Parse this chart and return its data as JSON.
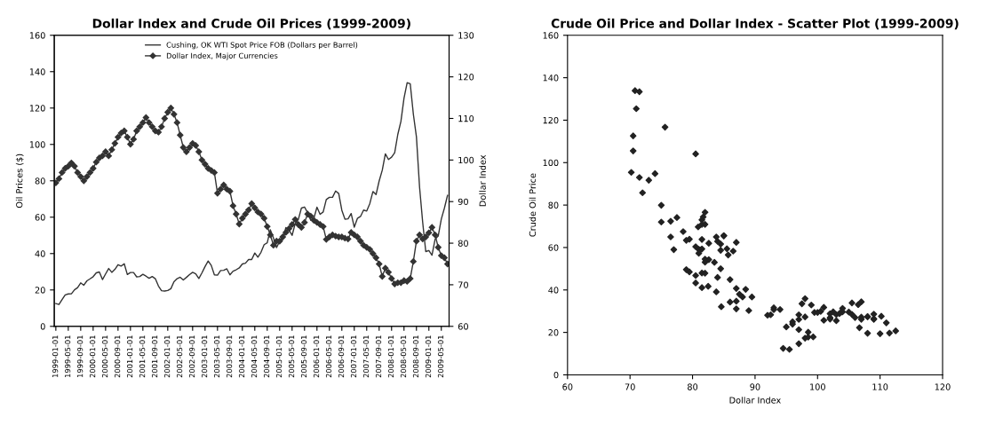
{
  "chart_data": [
    {
      "type": "line",
      "title": "Dollar Index and Crude Oil Prices (1999-2009)",
      "ylabel": "Oil Prices ($)",
      "y2label": "Dollar Index",
      "categories": [
        "1999-01-01",
        null,
        null,
        null,
        "1999-05-01",
        null,
        null,
        null,
        "1999-09-01",
        null,
        null,
        null,
        "2000-01-01",
        null,
        null,
        null,
        "2000-05-01",
        null,
        null,
        null,
        "2000-09-01",
        null,
        null,
        null,
        "2001-01-01",
        null,
        null,
        null,
        "2001-05-01",
        null,
        null,
        null,
        "2001-09-01",
        null,
        null,
        null,
        "2002-01-01",
        null,
        null,
        null,
        "2002-05-01",
        null,
        null,
        null,
        "2002-09-01",
        null,
        null,
        null,
        "2003-01-01",
        null,
        null,
        null,
        "2003-05-01",
        null,
        null,
        null,
        "2003-09-01",
        null,
        null,
        null,
        "2004-01-01",
        null,
        null,
        null,
        "2004-05-01",
        null,
        null,
        null,
        "2004-09-01",
        null,
        null,
        null,
        "2005-01-01",
        null,
        null,
        null,
        "2005-05-01",
        null,
        null,
        null,
        "2005-09-01",
        null,
        null,
        null,
        "2006-01-01",
        null,
        null,
        null,
        "2006-05-01",
        null,
        null,
        null,
        "2006-09-01",
        null,
        null,
        null,
        "2007-01-01",
        null,
        null,
        null,
        "2007-05-01",
        null,
        null,
        null,
        "2007-09-01",
        null,
        null,
        null,
        "2008-01-01",
        null,
        null,
        null,
        "2008-05-01",
        null,
        null,
        null,
        "2008-09-01",
        null,
        null,
        null,
        "2009-01-01",
        null,
        null,
        null,
        "2009-05-01",
        null,
        null
      ],
      "series": [
        {
          "name": "Cushing, OK WTI Spot Price FOB (Dollars per Barrel)",
          "color": "#333333",
          "marker": "none",
          "values": [
            12.5,
            12.0,
            14.7,
            17.3,
            17.8,
            17.9,
            20.1,
            21.3,
            23.9,
            22.6,
            25.0,
            26.1,
            27.3,
            29.4,
            29.9,
            25.7,
            28.8,
            31.8,
            29.7,
            31.3,
            33.9,
            33.1,
            34.4,
            28.5,
            29.6,
            29.6,
            27.2,
            27.4,
            28.6,
            27.6,
            26.4,
            27.4,
            26.2,
            22.2,
            19.6,
            19.4,
            19.7,
            20.7,
            24.5,
            26.2,
            27.0,
            25.5,
            26.9,
            28.4,
            29.7,
            28.9,
            26.3,
            29.4,
            32.9,
            35.9,
            33.5,
            28.3,
            28.1,
            30.7,
            30.8,
            31.6,
            28.3,
            30.3,
            31.1,
            32.1,
            34.3,
            34.7,
            36.7,
            36.7,
            40.3,
            38.0,
            40.7,
            44.9,
            45.9,
            53.1,
            48.5,
            43.3,
            46.8,
            48.0,
            54.3,
            53.0,
            50.0,
            56.5,
            58.7,
            65.0,
            65.6,
            62.4,
            58.3,
            59.4,
            65.5,
            61.6,
            62.9,
            69.7,
            70.9,
            70.9,
            74.4,
            73.0,
            63.8,
            58.9,
            59.1,
            62.0,
            54.5,
            59.3,
            60.4,
            63.9,
            63.4,
            67.5,
            74.1,
            72.4,
            79.9,
            85.8,
            94.8,
            91.7,
            93.0,
            95.4,
            105.5,
            112.6,
            125.4,
            133.9,
            133.4,
            116.7,
            104.1,
            76.6,
            57.3,
            41.1,
            41.7,
            39.1,
            47.9,
            49.6,
            59.0,
            65.0,
            72.0
          ]
        },
        {
          "name": "Dollar Index, Major Currencies",
          "color": "#333333",
          "marker": "diamond",
          "axis": "y2",
          "values": [
            94.5,
            95.5,
            97,
            98,
            98.5,
            99.3,
            98.5,
            97,
            96,
            95,
            96,
            97,
            98,
            99.5,
            100.5,
            101,
            102,
            101,
            102.5,
            104,
            105.5,
            106.5,
            107,
            105.5,
            103.8,
            105,
            107,
            108,
            109,
            110.2,
            109,
            108,
            107,
            106.7,
            108,
            110,
            111.5,
            112.5,
            111,
            109,
            106,
            103,
            102,
            103,
            104,
            103.5,
            102,
            100,
            99,
            98,
            97.5,
            97,
            92,
            93,
            94,
            93,
            92.5,
            89,
            87,
            84.6,
            86,
            87,
            88,
            89.5,
            88.5,
            87.5,
            87,
            86,
            84,
            82,
            79.5,
            80.5,
            80.5,
            81.5,
            82.6,
            83.5,
            84.5,
            85.7,
            84.5,
            83.8,
            85,
            87,
            86.5,
            85.5,
            85,
            84.5,
            84,
            80.9,
            81.5,
            82,
            81.7,
            81.5,
            81.5,
            81.2,
            81,
            82.6,
            82,
            81.5,
            80.5,
            79.5,
            79,
            78.5,
            77.5,
            76.5,
            75,
            72,
            74,
            73,
            71.5,
            70.2,
            70.5,
            70.5,
            71,
            70.8,
            71.5,
            75.6,
            80.5,
            82,
            81,
            81.5,
            82.5,
            83.8,
            82,
            79,
            77,
            76.5,
            75
          ]
        }
      ],
      "ylim": [
        0,
        160
      ],
      "yticks": [
        0,
        20,
        40,
        60,
        80,
        100,
        120,
        140,
        160
      ],
      "y2lim": [
        60,
        130
      ],
      "y2ticks": [
        60,
        70,
        80,
        90,
        100,
        110,
        120,
        130
      ],
      "legend": "top",
      "grid": false
    },
    {
      "type": "scatter",
      "title": "Crude Oil Price and Dollar Index - Scatter Plot (1999-2009)",
      "xlabel": "Dollar Index",
      "ylabel": "Crude Oil Price",
      "color": "#222222",
      "marker": "diamond",
      "x": [
        94.5,
        95.5,
        97,
        98,
        98.5,
        99.3,
        98.5,
        97,
        96,
        95,
        96,
        97,
        98,
        99.5,
        100.5,
        101,
        102,
        101,
        102.5,
        104,
        105.5,
        106.5,
        107,
        105.5,
        103.8,
        105,
        107,
        108,
        109,
        110.2,
        109,
        108,
        107,
        106.7,
        108,
        110,
        111.5,
        112.5,
        111,
        109,
        106,
        103,
        102,
        103,
        104,
        103.5,
        102,
        100,
        99,
        98,
        97.5,
        97,
        92,
        93,
        94,
        93,
        92.5,
        89,
        87,
        84.6,
        86,
        87,
        88,
        89.5,
        88.5,
        87.5,
        87,
        86,
        84,
        82,
        79.5,
        80.5,
        80.5,
        81.5,
        82.6,
        83.5,
        84.5,
        85.7,
        84.5,
        83.8,
        85,
        87,
        86.5,
        85.5,
        85,
        84.5,
        84,
        80.9,
        81.5,
        82,
        81.7,
        81.5,
        81.5,
        81.2,
        81,
        82.6,
        82,
        81.5,
        80.5,
        79.5,
        79,
        78.5,
        77.5,
        76.5,
        75,
        72,
        74,
        73,
        71.5,
        70.2,
        70.5,
        70.5,
        71,
        70.8,
        71.5,
        75.6,
        80.5,
        82,
        81,
        81.5,
        82.5,
        83.8,
        82,
        79,
        77,
        76.5,
        75
      ],
      "values": [
        12.5,
        12.0,
        14.7,
        17.3,
        17.8,
        17.9,
        20.1,
        21.3,
        23.9,
        22.6,
        25.0,
        26.1,
        27.3,
        29.4,
        29.9,
        25.7,
        28.8,
        31.8,
        29.7,
        31.3,
        33.9,
        33.1,
        34.4,
        28.5,
        29.6,
        29.6,
        27.2,
        27.4,
        28.6,
        27.6,
        26.4,
        27.4,
        26.2,
        22.2,
        19.6,
        19.4,
        19.7,
        20.7,
        24.5,
        26.2,
        27.0,
        25.5,
        26.9,
        28.4,
        29.7,
        28.9,
        26.3,
        29.4,
        32.9,
        35.9,
        33.5,
        28.3,
        28.1,
        30.7,
        30.8,
        31.6,
        28.3,
        30.3,
        31.1,
        32.1,
        34.3,
        34.7,
        36.7,
        36.7,
        40.3,
        38.0,
        40.7,
        44.9,
        45.9,
        53.1,
        48.5,
        43.3,
        46.8,
        48.0,
        54.3,
        53.0,
        50.0,
        56.5,
        58.7,
        65.0,
        65.6,
        62.4,
        58.3,
        59.4,
        65.5,
        61.6,
        62.9,
        69.7,
        70.9,
        70.9,
        74.4,
        73.0,
        63.8,
        58.9,
        59.1,
        62.0,
        54.5,
        59.3,
        60.4,
        63.9,
        63.4,
        67.5,
        74.1,
        72.4,
        79.9,
        85.8,
        94.8,
        91.7,
        93.0,
        95.4,
        105.5,
        112.6,
        125.4,
        133.9,
        133.4,
        116.7,
        104.1,
        76.6,
        57.3,
        41.1,
        41.7,
        39.1,
        47.9,
        49.6,
        59.0,
        65.0,
        72.0
      ],
      "xlim": [
        60,
        120
      ],
      "xticks": [
        60,
        70,
        80,
        90,
        100,
        110,
        120
      ],
      "ylim": [
        0,
        160
      ],
      "yticks": [
        0,
        20,
        40,
        60,
        80,
        100,
        120,
        140,
        160
      ],
      "grid": false
    }
  ]
}
